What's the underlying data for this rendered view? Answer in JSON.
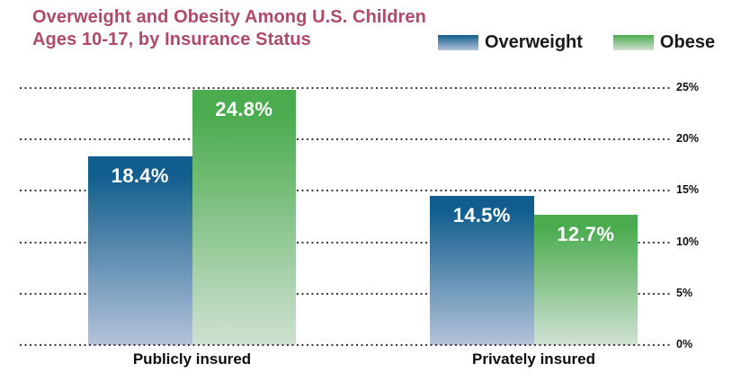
{
  "header": {
    "title_line1": "Overweight and Obesity Among U.S. Children",
    "title_line2": "Ages 10-17, by Insurance Status",
    "title_color": "#b04a68"
  },
  "legend": {
    "items": [
      {
        "label": "Overweight",
        "color_top": "#115e8e",
        "color_bottom": "#b4c2d9"
      },
      {
        "label": "Obese",
        "color_top": "#4bac4f",
        "color_bottom": "#d0e1d2"
      }
    ]
  },
  "chart_data": {
    "type": "bar",
    "title": "Overweight and Obesity Among U.S. Children Ages 10-17, by Insurance Status",
    "categories": [
      "Publicly insured",
      "Privately insured"
    ],
    "series": [
      {
        "name": "Overweight",
        "values": [
          18.4,
          14.5
        ],
        "labels": [
          "18.4%",
          "14.5%"
        ],
        "color_top": "#115e8e",
        "color_bottom": "#b4c2d9"
      },
      {
        "name": "Obese",
        "values": [
          24.8,
          12.7
        ],
        "labels": [
          "24.8%",
          "12.7%"
        ],
        "color_top": "#4bac4f",
        "color_bottom": "#d0e1d2"
      }
    ],
    "ylim": [
      0,
      25
    ],
    "yticks": [
      {
        "value": 0,
        "label": "0%"
      },
      {
        "value": 5,
        "label": "5%"
      },
      {
        "value": 10,
        "label": "10%"
      },
      {
        "value": 15,
        "label": "15%"
      },
      {
        "value": 20,
        "label": "20%"
      },
      {
        "value": 25,
        "label": "25%"
      }
    ],
    "grid": "horizontal-dotted",
    "gridline_color": "#3d3d3d",
    "legend_position": "top-right",
    "y_axis_side": "right"
  }
}
